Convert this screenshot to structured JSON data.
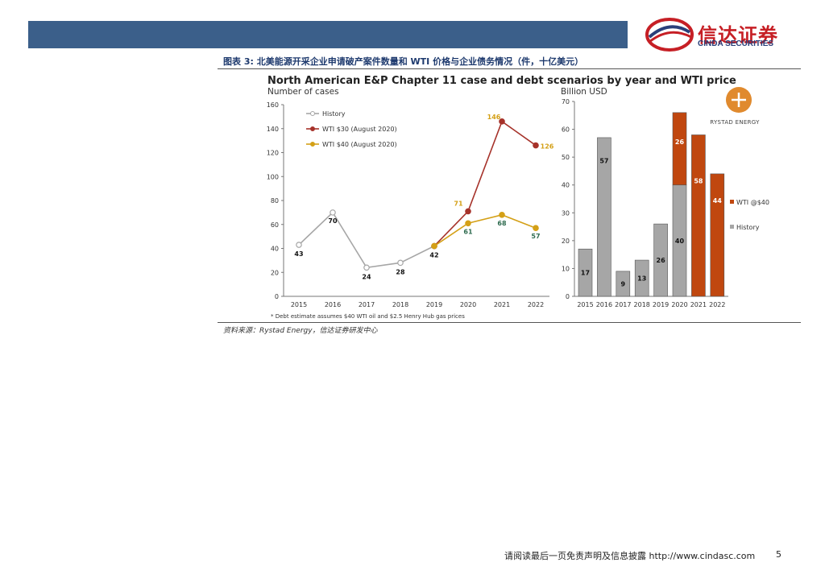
{
  "header": {
    "logo_cn": "信达证券",
    "logo_en": "CINDA SECURITIES",
    "figure_title": "图表 3: 北美能源开采企业申请破产案件数量和 WTI 价格与企业债务情况（件，十亿美元）"
  },
  "chart_data": [
    {
      "type": "line",
      "title": "North American E&P Chapter 11 case and debt scenarios by year and WTI price",
      "ylabel": "Number of cases",
      "ylim": [
        0,
        160
      ],
      "yticks": [
        "0",
        "20",
        "40",
        "60",
        "80",
        "100",
        "120",
        "140",
        "160"
      ],
      "categories": [
        "2015",
        "2016",
        "2017",
        "2018",
        "2019",
        "2020",
        "2021",
        "2022"
      ],
      "series": [
        {
          "name": "History",
          "color": "#a6a6a6",
          "x": [
            "2015",
            "2016",
            "2017",
            "2018",
            "2019"
          ],
          "values": [
            43,
            70,
            24,
            28,
            42
          ],
          "labels": [
            "43",
            "70",
            "24",
            "28",
            "42"
          ]
        },
        {
          "name": "WTI $30 (August 2020)",
          "color": "#a6322a",
          "x": [
            "2019",
            "2020",
            "2021",
            "2022"
          ],
          "values": [
            42,
            71,
            146,
            126
          ],
          "labels": [
            "",
            "71",
            "146",
            "126"
          ]
        },
        {
          "name": "WTI $40 (August 2020)",
          "color": "#d4a017",
          "x": [
            "2019",
            "2020",
            "2021",
            "2022"
          ],
          "values": [
            42,
            61,
            68,
            57
          ],
          "labels": [
            "",
            "61",
            "68",
            "57"
          ]
        }
      ],
      "footnote": "* Debt estimate assumes $40 WTI oil and $2.5 Henry Hub gas prices"
    },
    {
      "type": "bar",
      "ylabel": "Billion USD",
      "ylim": [
        0,
        70
      ],
      "yticks": [
        "0",
        "10",
        "20",
        "30",
        "40",
        "50",
        "60",
        "70"
      ],
      "categories": [
        "2015",
        "2016",
        "2017",
        "2018",
        "2019",
        "2020",
        "2021",
        "2022"
      ],
      "series": [
        {
          "name": "History",
          "color": "#a6a6a6",
          "values": [
            17,
            57,
            9,
            13,
            26,
            40,
            0,
            0
          ],
          "labels": [
            "17",
            "57",
            "9",
            "13",
            "26",
            "40",
            "",
            ""
          ]
        },
        {
          "name": "WTI @$40",
          "color": "#c0470f",
          "values": [
            0,
            0,
            0,
            0,
            0,
            26,
            58,
            44
          ],
          "labels": [
            "",
            "",
            "",
            "",
            "",
            "26",
            "58",
            "44"
          ]
        }
      ],
      "brand": "RYSTAD ENERGY"
    }
  ],
  "source": "资料来源：Rystad Energy，信达证券研发中心",
  "footer": {
    "disclaimer": "请阅读最后一页免责声明及信息披露 http://www.cindasc.com",
    "page": "5"
  }
}
